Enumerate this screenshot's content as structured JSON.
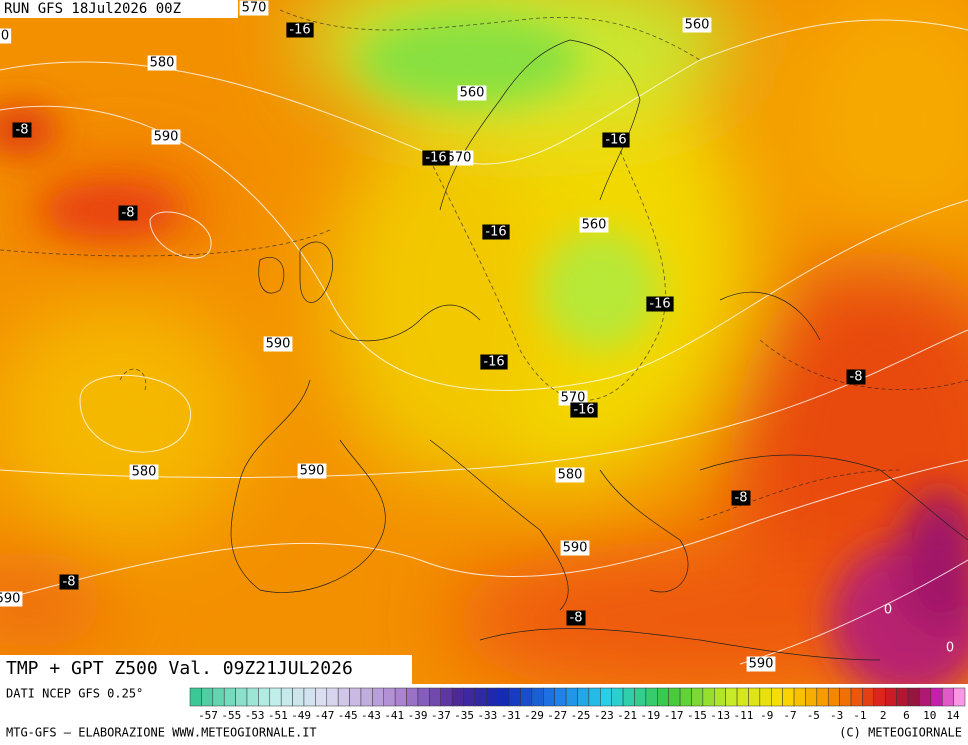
{
  "header": {
    "run": "RUN GFS 18Jul2026 00Z"
  },
  "footer": {
    "title": "TMP + GPT Z500 Val. 09Z21JUL2026",
    "source": "DATI NCEP GFS 0.25°",
    "credit": "MTG-GFS — ELABORAZIONE WWW.METEOGIORNALE.IT",
    "copyright": "(C) METEOGIORNALE"
  },
  "legend": {
    "labels": [
      -57,
      -55,
      -53,
      -51,
      -49,
      -47,
      -45,
      -43,
      -41,
      -39,
      -37,
      -35,
      -33,
      -31,
      -29,
      -27,
      -25,
      -23,
      -21,
      -19,
      -17,
      -15,
      -13,
      -11,
      -9,
      -7,
      -5,
      -3,
      -1,
      2,
      6,
      10,
      14
    ]
  },
  "height_labels": [
    570,
    560,
    0,
    580,
    560,
    590,
    570,
    560,
    590,
    570,
    580,
    590,
    580,
    590,
    590,
    590
  ],
  "temperature_labels": [
    -16,
    -8,
    -16,
    -16,
    -8,
    -16,
    -16,
    -16,
    -8,
    -16,
    -8,
    -8,
    -8,
    0,
    0
  ]
}
